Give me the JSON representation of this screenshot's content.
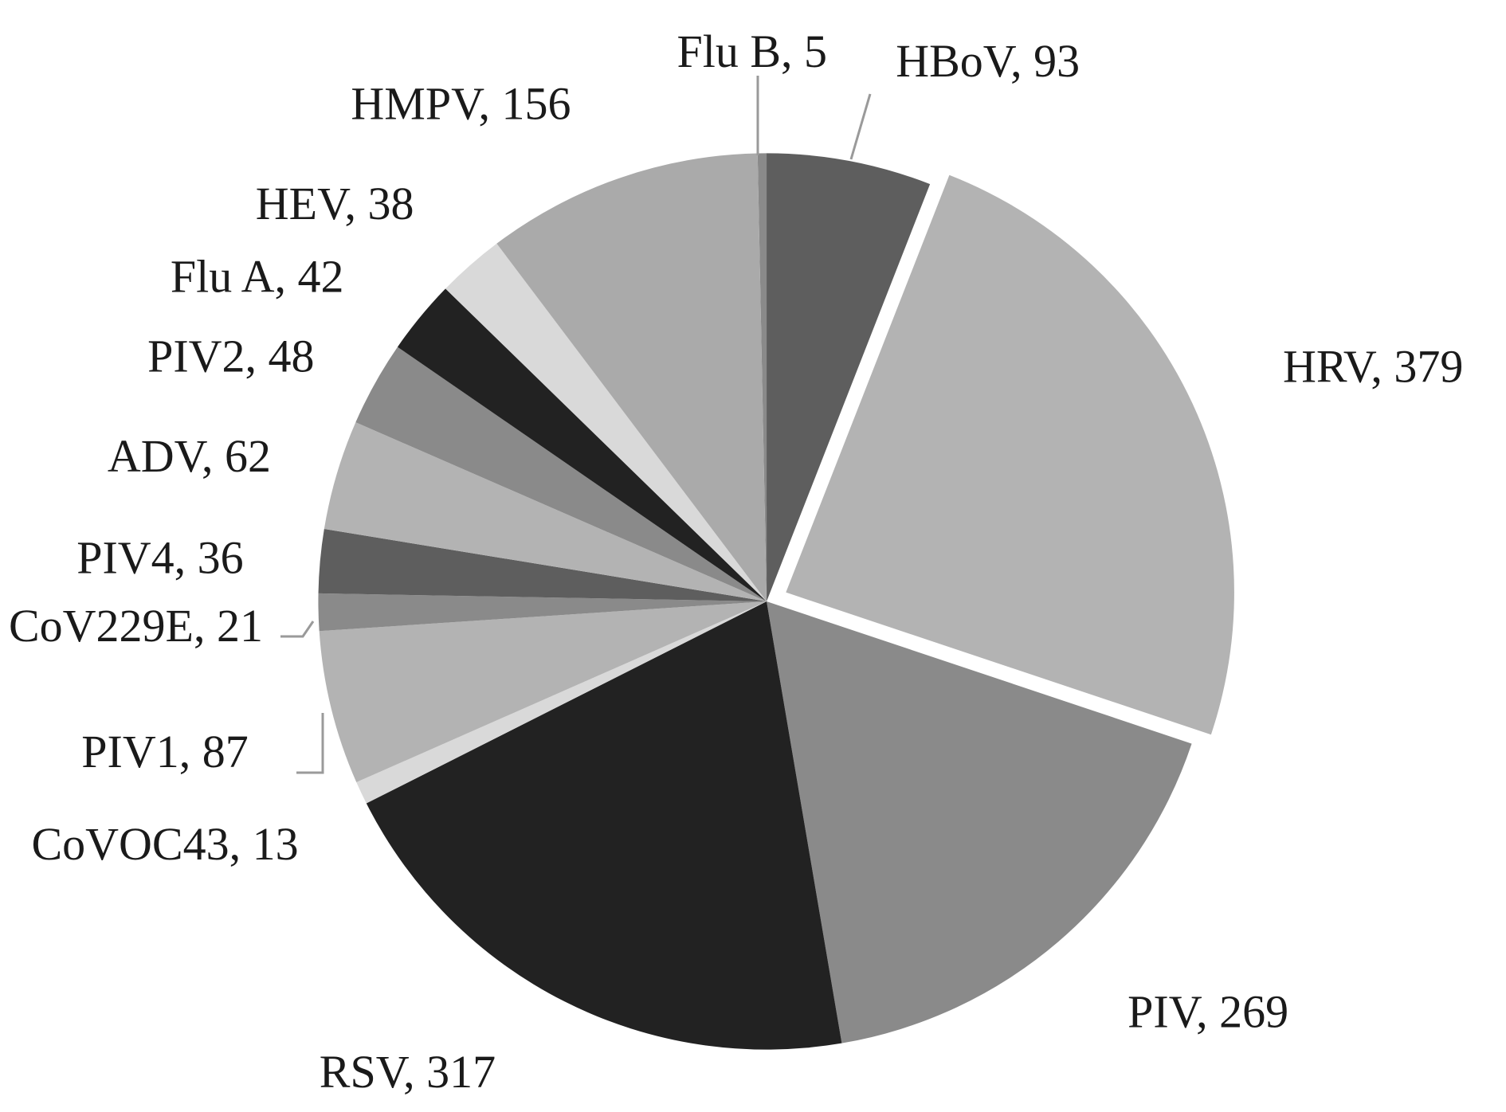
{
  "chart_data": {
    "type": "pie",
    "values": [
      5,
      93,
      379,
      269,
      317,
      13,
      87,
      21,
      36,
      62,
      48,
      42,
      38,
      156
    ],
    "value_labels": [
      "Flu B, 5",
      "HBoV, 93",
      "HRV, 379",
      "PIV, 269",
      "RSV, 317",
      "CoVOC43, 13",
      "PIV1, 87",
      "CoV229E, 21",
      "PIV4, 36",
      "ADV, 62",
      "PIV2, 48",
      "Flu A, 42",
      "HEV, 38",
      "HMPV, 156"
    ],
    "colors": [
      "#8a8a8a",
      "#5e5e5e",
      "#b3b3b3",
      "#8a8a8a",
      "#222222",
      "#d9d9d9",
      "#b3b3b3",
      "#8a8a8a",
      "#5e5e5e",
      "#b3b3b3",
      "#8a8a8a",
      "#222222",
      "#d9d9d9",
      "#aaaaaa"
    ],
    "explode": [
      false,
      false,
      true,
      false,
      false,
      false,
      false,
      false,
      false,
      false,
      false,
      false,
      false,
      false
    ]
  }
}
